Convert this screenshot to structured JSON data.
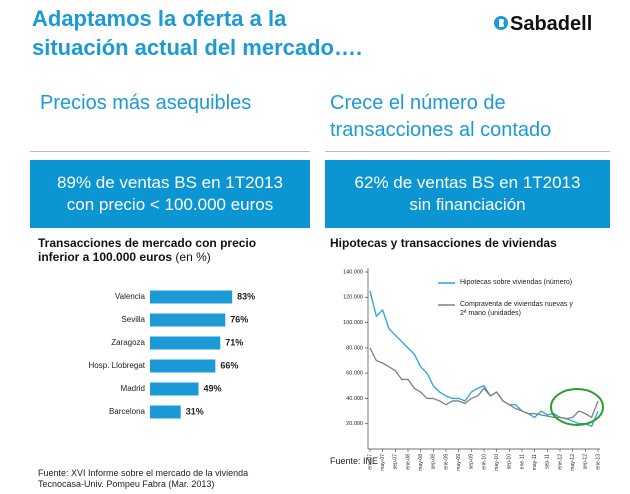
{
  "slide": {
    "title": [
      "Adaptamos la oferta a la",
      "situación actual del mercado…."
    ],
    "logo": "Sabadell",
    "left_heading": [
      "Precios más asequibles"
    ],
    "right_heading": [
      "Crece el número de",
      "transacciones al contado"
    ],
    "left_highlight": [
      "89% de ventas BS en 1T2013",
      "con precio < 100.000 euros"
    ],
    "right_highlight": [
      "62% de ventas BS en 1T2013",
      "sin financiación"
    ],
    "left_source": [
      "Fuente: XVI Informe sobre el mercado de la vivienda",
      "Tecnocasa-Univ. Pompeu Fabra (Mar. 2013)"
    ],
    "right_source": [
      "Fuente: INE"
    ]
  },
  "chart_data": [
    {
      "type": "bar",
      "orientation": "horizontal",
      "title": "Transacciones de mercado con precio inferior a 100.000 euros",
      "unit": "(en %)",
      "categories": [
        "Valencia",
        "Sevilla",
        "Zaragoza",
        "Hosp. Llobregat",
        "Madrid",
        "Barcelona"
      ],
      "values": [
        83,
        76,
        71,
        66,
        49,
        31
      ],
      "value_labels": [
        "83%",
        "76%",
        "71%",
        "66%",
        "49%",
        "31%"
      ],
      "color": "#1b9ad6"
    },
    {
      "type": "line",
      "title": "Hipotecas y transacciones de viviendas",
      "categories": [
        "ene-07",
        null,
        "may-07",
        null,
        "sep-07",
        null,
        "ene-08",
        null,
        "may-08",
        null,
        "sep-08",
        null,
        "ene-09",
        null,
        "may-09",
        null,
        "sep-09",
        null,
        "ene-10",
        null,
        "may-10",
        null,
        "sep-10",
        null,
        "ene-11",
        null,
        "may-11",
        null,
        "sep-11",
        null,
        "ene-12",
        null,
        "may-12",
        null,
        "sep-12",
        null,
        "ene-13"
      ],
      "series": [
        {
          "name": "Hipotecas sobre viviendas (número)",
          "color": "#29a3dc",
          "values": [
            125000,
            105000,
            110000,
            95000,
            90000,
            85000,
            80000,
            75000,
            65000,
            60000,
            50000,
            45000,
            42000,
            40000,
            40000,
            38000,
            45000,
            48000,
            50000,
            42000,
            45000,
            38000,
            35000,
            35000,
            30000,
            28000,
            25000,
            30000,
            27000,
            28000,
            25000,
            24000,
            22000,
            20000,
            20000,
            18000,
            30000
          ]
        },
        {
          "name": "Compraventa de viviendas nuevas y 2ª mano (unidades)",
          "color": "#808080",
          "values": [
            80000,
            70000,
            68000,
            65000,
            62000,
            55000,
            55000,
            48000,
            45000,
            40000,
            40000,
            38000,
            35000,
            38000,
            38000,
            36000,
            40000,
            42000,
            48000,
            42000,
            45000,
            38000,
            35000,
            32000,
            30000,
            28000,
            28000,
            27000,
            26000,
            25000,
            25000,
            24000,
            25000,
            30000,
            28000,
            25000,
            38000
          ]
        }
      ],
      "ylim": [
        0,
        140000
      ],
      "yticks": [
        {
          "value": 20000,
          "label": "20.000"
        },
        {
          "value": 40000,
          "label": "40.000"
        },
        {
          "value": 60000,
          "label": "60.000"
        },
        {
          "value": 80000,
          "label": "80.000"
        },
        {
          "value": 100000,
          "label": "100.000"
        },
        {
          "value": 120000,
          "label": "120.000"
        },
        {
          "value": 140000,
          "label": "140.000"
        }
      ]
    }
  ]
}
